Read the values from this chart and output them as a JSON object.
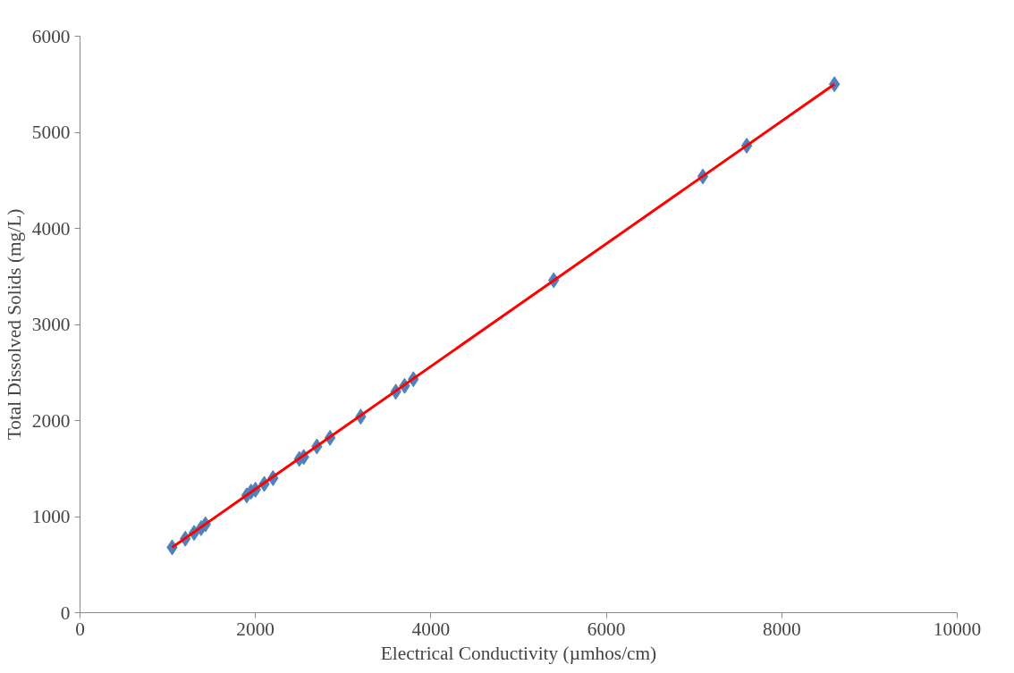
{
  "chart_data": {
    "type": "scatter",
    "xlabel": "Electrical Conductivity (µmhos/cm)",
    "ylabel": "Total Dissolved Solids (mg/L)",
    "xlim": [
      0,
      10000
    ],
    "ylim": [
      0,
      6000
    ],
    "xticks": [
      0,
      2000,
      4000,
      6000,
      8000,
      10000
    ],
    "yticks": [
      0,
      1000,
      2000,
      3000,
      4000,
      5000,
      6000
    ],
    "grid": false,
    "marker": "diamond",
    "series": [
      {
        "color": "#4f81bd",
        "x": [
          1050,
          1200,
          1300,
          1380,
          1430,
          1900,
          1950,
          2000,
          2100,
          2200,
          2500,
          2550,
          2700,
          2850,
          3200,
          3600,
          3700,
          3800,
          5400,
          7100,
          7600,
          8600
        ],
        "values": [
          680,
          770,
          830,
          880,
          920,
          1220,
          1260,
          1280,
          1340,
          1400,
          1600,
          1620,
          1730,
          1820,
          2040,
          2300,
          2360,
          2430,
          3460,
          4540,
          4860,
          5500
        ]
      },
      {
        "type": "line",
        "color": "#ff0000",
        "line_style": "solid",
        "marker": "none",
        "x": [
          1050,
          8600
        ],
        "values": [
          680,
          5500
        ]
      }
    ]
  }
}
